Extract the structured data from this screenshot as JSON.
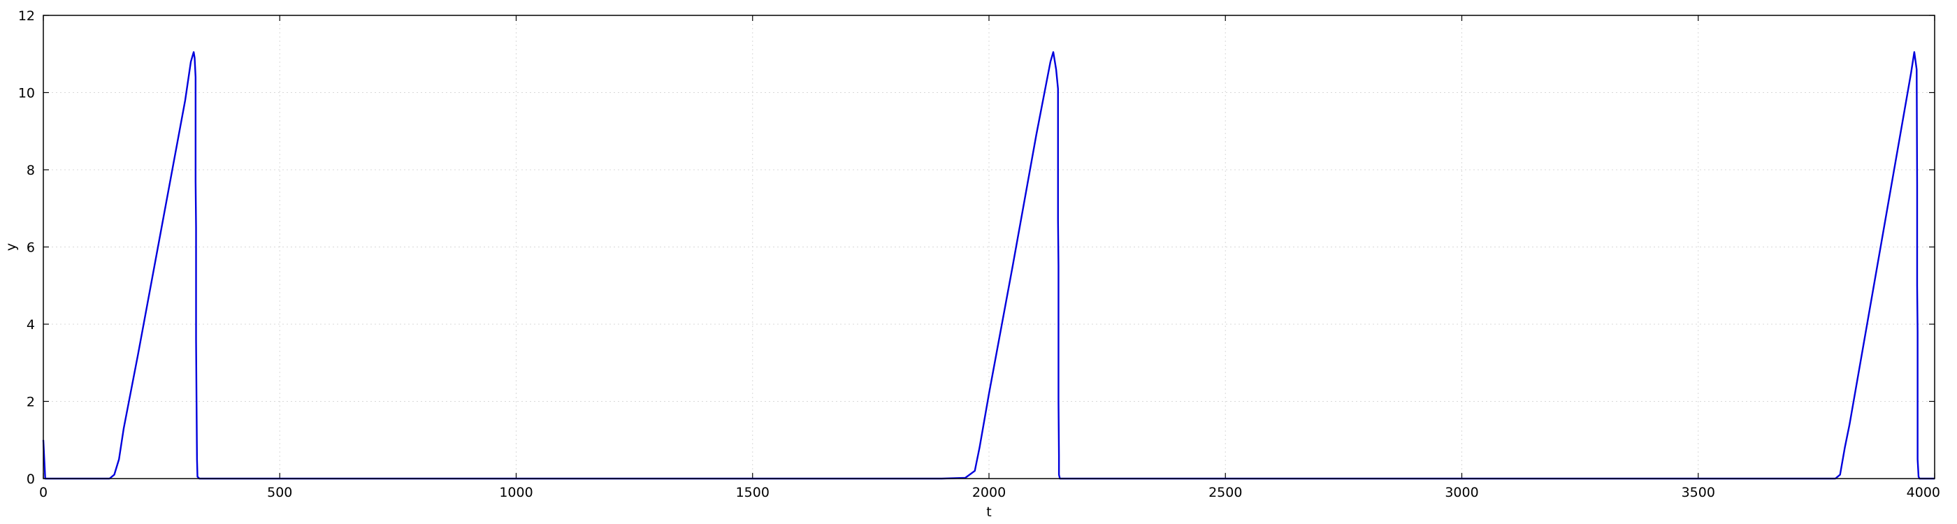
{
  "chart_data": {
    "type": "line",
    "title": "",
    "xlabel": "t",
    "ylabel": "y",
    "xlim": [
      0,
      4000
    ],
    "ylim": [
      0,
      12
    ],
    "xticks": [
      0,
      500,
      1000,
      1500,
      2000,
      2500,
      3000,
      3500,
      4000
    ],
    "yticks": [
      0,
      2,
      4,
      6,
      8,
      10,
      12
    ],
    "grid": true,
    "series": [
      {
        "color": "#0000dd",
        "x": [
          0,
          2,
          4,
          100,
          140,
          150,
          160,
          170,
          200,
          250,
          300,
          312,
          318,
          320,
          322,
          322,
          323,
          323,
          324,
          325,
          326,
          330,
          500,
          1000,
          1500,
          1900,
          1950,
          1970,
          1980,
          1990,
          2000,
          2050,
          2100,
          2130,
          2136,
          2142,
          2146,
          2146,
          2147,
          2147,
          2148,
          2148,
          2150,
          2155,
          2500,
          3000,
          3500,
          3750,
          3790,
          3800,
          3810,
          3820,
          3850,
          3900,
          3950,
          3957,
          3962,
          3963,
          3963,
          3964,
          3964,
          3966,
          3968,
          3975,
          4000
        ],
        "y": [
          1.0,
          0.5,
          0.0,
          0.0,
          0.0,
          0.1,
          0.5,
          1.3,
          3.2,
          6.5,
          9.8,
          10.8,
          11.05,
          10.9,
          10.4,
          7.7,
          6.5,
          3.6,
          2.0,
          0.5,
          0.05,
          0.0,
          0.0,
          0.0,
          0.0,
          0.0,
          0.02,
          0.2,
          0.8,
          1.5,
          2.2,
          5.5,
          8.9,
          10.8,
          11.05,
          10.6,
          10.1,
          6.7,
          5.5,
          2.0,
          0.6,
          0.1,
          0.0,
          0.0,
          0.0,
          0.0,
          0.0,
          0.0,
          0.0,
          0.1,
          0.8,
          1.4,
          3.5,
          7.0,
          10.5,
          11.05,
          10.6,
          7.6,
          5.0,
          3.8,
          0.5,
          0.05,
          0.0,
          0.0,
          0.0
        ]
      }
    ]
  }
}
